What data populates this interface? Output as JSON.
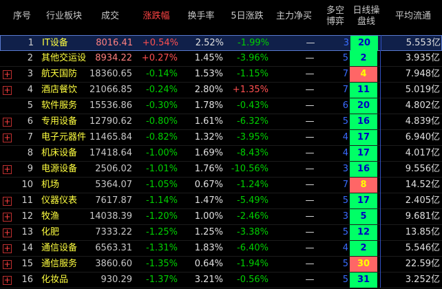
{
  "header": {
    "columns": [
      "序号",
      "行业板块",
      "成交",
      "涨跌幅",
      "换手率",
      "5日涨跌",
      "主力净买",
      "多空博弈",
      "日线操盘线",
      "平均流通"
    ]
  },
  "table": {
    "rows": [
      {
        "cells": [
          "1",
          "IT设备",
          "8016.41",
          "+0.54%",
          "2.52%",
          "-1.99%",
          "—",
          "3",
          "20",
          "5.553亿"
        ],
        "line_color": "#00ff66"
      },
      {
        "cells": [
          "2",
          "其他交运设",
          "8934.22",
          "+0.27%",
          "1.45%",
          "-3.96%",
          "—",
          "5",
          "2",
          "3.935亿"
        ],
        "line_color": "#00ff66"
      },
      {
        "mark": "+",
        "cells": [
          "3",
          "航天国防",
          "18360.65",
          "-0.14%",
          "1.53%",
          "-1.15%",
          "—",
          "7",
          "4",
          "7.948亿"
        ],
        "line_color": "#ff6666"
      },
      {
        "mark": "+",
        "cells": [
          "4",
          "酒店餐饮",
          "21066.85",
          "-0.24%",
          "2.80%",
          "+1.35%",
          "—",
          "7",
          "11",
          "5.019亿"
        ],
        "line_color": "#00ff66"
      },
      {
        "cells": [
          "5",
          "软件服务",
          "15536.86",
          "-0.30%",
          "1.78%",
          "-0.43%",
          "—",
          "6",
          "20",
          "4.802亿"
        ],
        "line_color": "#00ff66"
      },
      {
        "mark": "+",
        "cells": [
          "6",
          "专用设备",
          "12790.62",
          "-0.80%",
          "1.61%",
          "-6.32%",
          "—",
          "5",
          "16",
          "4.839亿"
        ],
        "line_color": "#00ff66"
      },
      {
        "mark": "+",
        "cells": [
          "7",
          "电子元器件",
          "11465.84",
          "-0.82%",
          "1.32%",
          "-3.95%",
          "—",
          "4",
          "17",
          "6.940亿"
        ],
        "line_color": "#00ff66"
      },
      {
        "cells": [
          "8",
          "机床设备",
          "17418.64",
          "-1.00%",
          "1.69%",
          "-8.43%",
          "—",
          "4",
          "17",
          "4.017亿"
        ],
        "line_color": "#00ff66"
      },
      {
        "mark": "+",
        "cells": [
          "9",
          "电源设备",
          "2506.02",
          "-1.01%",
          "1.76%",
          "-10.56%",
          "—",
          "3",
          "16",
          "9.556亿"
        ],
        "line_color": "#00ff66"
      },
      {
        "cells": [
          "10",
          "机场",
          "5364.07",
          "-1.05%",
          "0.67%",
          "-1.24%",
          "—",
          "7",
          "8",
          "14.52亿"
        ],
        "line_color": "#ff6666"
      },
      {
        "mark": "+",
        "cells": [
          "11",
          "仪器仪表",
          "7617.87",
          "-1.14%",
          "1.47%",
          "-5.49%",
          "—",
          "5",
          "17",
          "2.405亿"
        ],
        "line_color": "#00ff66"
      },
      {
        "mark": "+",
        "cells": [
          "12",
          "牧渔",
          "14038.39",
          "-1.20%",
          "1.00%",
          "-2.46%",
          "—",
          "3",
          "5",
          "9.681亿"
        ],
        "line_color": "#00ff66"
      },
      {
        "mark": "+",
        "cells": [
          "13",
          "化肥",
          "7333.22",
          "-1.25%",
          "1.25%",
          "-3.38%",
          "—",
          "5",
          "12",
          "13.85亿"
        ],
        "line_color": "#00ff66"
      },
      {
        "mark": "+",
        "cells": [
          "14",
          "通信设备",
          "6563.31",
          "-1.31%",
          "1.83%",
          "-6.40%",
          "—",
          "4",
          "2",
          "5.546亿"
        ],
        "line_color": "#00ff66"
      },
      {
        "mark": "+",
        "cells": [
          "15",
          "通信服务",
          "3860.60",
          "-1.35%",
          "0.64%",
          "-1.94%",
          "—",
          "5",
          "30",
          "22.59亿"
        ],
        "line_color": "#ff6666"
      },
      {
        "mark": "+",
        "cells": [
          "16",
          "化妆品",
          "930.29",
          "-1.37%",
          "3.21%",
          "-0.56%",
          "—",
          "5",
          "31",
          "3.252亿"
        ],
        "line_color": "#00ff66"
      }
    ]
  }
}
